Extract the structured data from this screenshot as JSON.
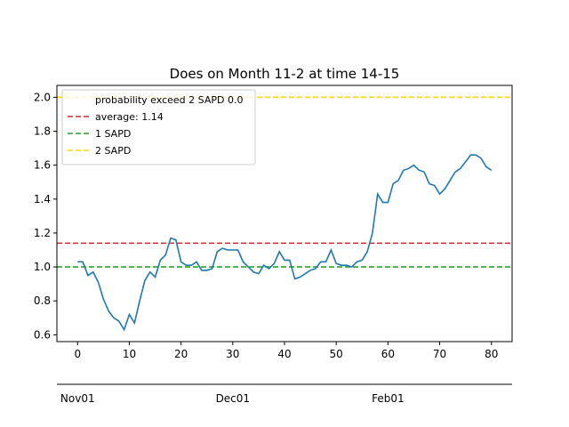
{
  "chart_data": {
    "type": "line",
    "title": "Does on Month 11-2 at time 14-15",
    "xlabel": "",
    "ylabel": "",
    "xlim": [
      -4,
      84
    ],
    "ylim": [
      0.56,
      2.07
    ],
    "x_ticks": [
      0,
      10,
      20,
      30,
      40,
      50,
      60,
      70,
      80
    ],
    "y_ticks": [
      0.6,
      0.8,
      1.0,
      1.2,
      1.4,
      1.6,
      1.8,
      2.0
    ],
    "grid": false,
    "legend_position": "top-left",
    "series": [
      {
        "color": "#1f77b4",
        "x": [
          0,
          1,
          2,
          3,
          4,
          5,
          6,
          7,
          8,
          9,
          10,
          11,
          12,
          13,
          14,
          15,
          16,
          17,
          18,
          19,
          20,
          21,
          22,
          23,
          24,
          25,
          26,
          27,
          28,
          29,
          30,
          31,
          32,
          33,
          34,
          35,
          36,
          37,
          38,
          39,
          40,
          41,
          42,
          43,
          44,
          45,
          46,
          47,
          48,
          49,
          50,
          51,
          52,
          53,
          54,
          55,
          56,
          57,
          58,
          59,
          60,
          61,
          62,
          63,
          64,
          65,
          66,
          67,
          68,
          69,
          70,
          71,
          72,
          73,
          74,
          75,
          76,
          77,
          78,
          79,
          80
        ],
        "y": [
          1.03,
          1.03,
          0.95,
          0.97,
          0.91,
          0.81,
          0.74,
          0.7,
          0.68,
          0.63,
          0.72,
          0.67,
          0.8,
          0.92,
          0.97,
          0.94,
          1.04,
          1.07,
          1.17,
          1.16,
          1.03,
          1.01,
          1.01,
          1.03,
          0.98,
          0.98,
          0.99,
          1.09,
          1.11,
          1.1,
          1.1,
          1.1,
          1.03,
          1.0,
          0.97,
          0.96,
          1.01,
          0.99,
          1.02,
          1.09,
          1.04,
          1.04,
          0.93,
          0.94,
          0.96,
          0.98,
          0.99,
          1.03,
          1.03,
          1.1,
          1.02,
          1.01,
          1.01,
          1.0,
          1.03,
          1.04,
          1.09,
          1.2,
          1.43,
          1.38,
          1.38,
          1.49,
          1.51,
          1.57,
          1.58,
          1.6,
          1.57,
          1.56,
          1.49,
          1.48,
          1.43,
          1.46,
          1.51,
          1.56,
          1.58,
          1.62,
          1.66,
          1.66,
          1.64,
          1.59,
          1.57
        ]
      }
    ],
    "reference_lines": [
      {
        "y": 1.14,
        "color": "#d62728",
        "label": "average: 1.14"
      },
      {
        "y": 1.0,
        "color": "#2ca02c",
        "label": "1 SAPD"
      },
      {
        "y": 2.0,
        "color": "#ffd700",
        "label": "2 SAPD"
      }
    ],
    "legend": {
      "entries": [
        {
          "label": "probability exceed 2 SAPD 0.0",
          "color": "#ffffff"
        },
        {
          "label": "average: 1.14",
          "color": "#d62728"
        },
        {
          "label": "1 SAPD",
          "color": "#2ca02c"
        },
        {
          "label": "2 SAPD",
          "color": "#ffd700"
        }
      ]
    },
    "secondary_axis": {
      "labels": [
        "Nov01",
        "Dec01",
        "Feb01"
      ],
      "positions": [
        0,
        30,
        60
      ]
    }
  }
}
